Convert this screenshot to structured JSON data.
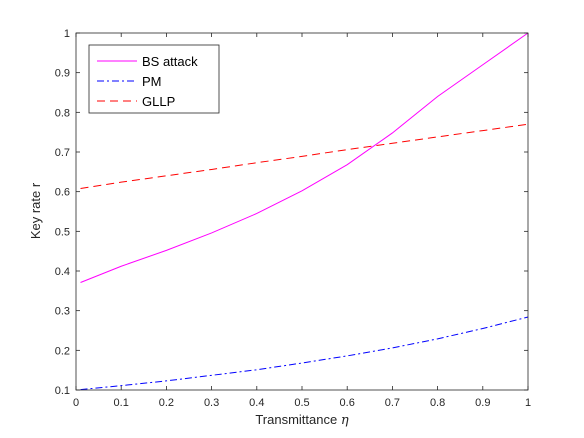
{
  "chart_data": {
    "type": "line",
    "title": "",
    "xlabel": "Transmittance",
    "xlabel_symbol": "η",
    "ylabel": "Key rate r",
    "xlim": [
      0,
      1
    ],
    "ylim": [
      0.1,
      1
    ],
    "x_ticks": [
      "0",
      "0.1",
      "0.2",
      "0.3",
      "0.4",
      "0.5",
      "0.6",
      "0.7",
      "0.8",
      "0.9",
      "1"
    ],
    "y_ticks": [
      "0.1",
      "0.2",
      "0.3",
      "0.4",
      "0.5",
      "0.6",
      "0.7",
      "0.8",
      "0.9",
      "1"
    ],
    "grid": false,
    "legend_position": "top-left",
    "x": [
      0.01,
      0.1,
      0.2,
      0.3,
      0.4,
      0.5,
      0.6,
      0.7,
      0.8,
      0.9,
      1.0
    ],
    "series": [
      {
        "name": "BS attack",
        "color": "#ff00ff",
        "dash": "solid",
        "values": [
          0.371,
          0.412,
          0.452,
          0.496,
          0.545,
          0.602,
          0.668,
          0.748,
          0.84,
          0.92,
          1.0
        ]
      },
      {
        "name": "PM",
        "color": "#0000ff",
        "dash": "dashdot",
        "values": [
          0.101,
          0.111,
          0.123,
          0.137,
          0.151,
          0.168,
          0.186,
          0.206,
          0.229,
          0.255,
          0.284
        ]
      },
      {
        "name": "GLLP",
        "color": "#ff0000",
        "dash": "dashed",
        "values": [
          0.608,
          0.624,
          0.64,
          0.656,
          0.673,
          0.689,
          0.706,
          0.722,
          0.738,
          0.754,
          0.77
        ]
      }
    ]
  }
}
